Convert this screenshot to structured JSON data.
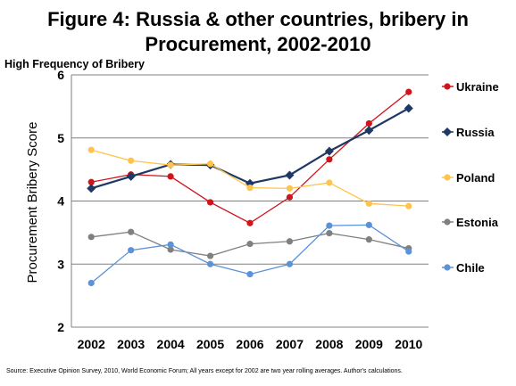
{
  "title_line1": "Figure 4: Russia & other countries, bribery in",
  "title_line2": "Procurement, 2002-2010",
  "subnote": "High Frequency of Bribery",
  "source": "Source: Executive Opinion Survey, 2010, World Economic Forum; All years except for 2002 are two year rolling averages. Author's calculations.",
  "chart_data": {
    "type": "line",
    "title": "Figure 4: Russia & other countries, bribery in Procurement, 2002-2010",
    "xlabel": "",
    "ylabel": "Procurement Bribery Score",
    "x": [
      "2002",
      "2003",
      "2004",
      "2005",
      "2006",
      "2007",
      "2008",
      "2009",
      "2010"
    ],
    "ylim": [
      2,
      6
    ],
    "yticks": [
      "2",
      "3",
      "4",
      "5",
      "6"
    ],
    "grid": "horizontal",
    "legend": "right",
    "series": [
      {
        "name": "Ukraine",
        "color": "#d0141a",
        "marker": "circle",
        "values": [
          4.3,
          4.42,
          4.39,
          3.98,
          3.65,
          4.06,
          4.66,
          5.23,
          5.73
        ]
      },
      {
        "name": "Russia",
        "color": "#1f3864",
        "marker": "diamond",
        "values": [
          4.2,
          4.39,
          4.58,
          4.57,
          4.28,
          4.41,
          4.79,
          5.12,
          5.47
        ]
      },
      {
        "name": "Poland",
        "color": "#ffc44d",
        "marker": "circle",
        "values": [
          4.81,
          4.64,
          4.57,
          4.59,
          4.21,
          4.2,
          4.29,
          3.96,
          3.92
        ]
      },
      {
        "name": "Estonia",
        "color": "#808080",
        "marker": "circle",
        "values": [
          3.43,
          3.51,
          3.23,
          3.13,
          3.32,
          3.36,
          3.49,
          3.39,
          3.25
        ]
      },
      {
        "name": "Chile",
        "color": "#5b93d6",
        "marker": "circle",
        "values": [
          2.7,
          3.22,
          3.31,
          3.0,
          2.84,
          3.0,
          3.61,
          3.62,
          3.2
        ]
      }
    ]
  }
}
